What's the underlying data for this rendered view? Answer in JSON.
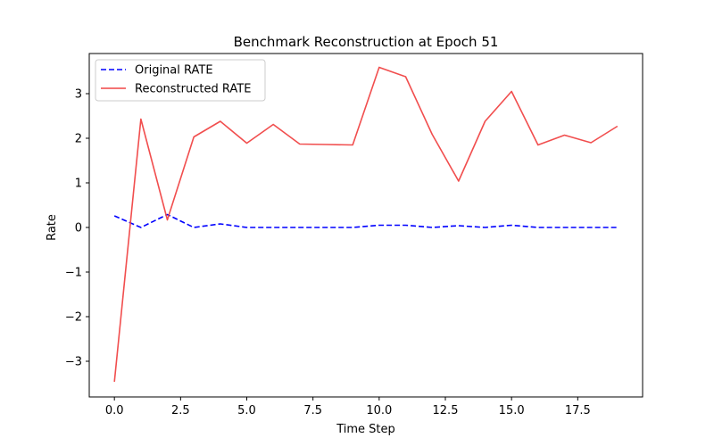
{
  "chart_data": {
    "type": "line",
    "title": "Benchmark Reconstruction at Epoch 51",
    "xlabel": "Time Step",
    "ylabel": "Rate",
    "xlim": [
      -0.95,
      19.95
    ],
    "ylim": [
      -3.8,
      3.9
    ],
    "xticks": [
      0.0,
      2.5,
      5.0,
      7.5,
      10.0,
      12.5,
      15.0,
      17.5
    ],
    "xtick_labels": [
      "0.0",
      "2.5",
      "5.0",
      "7.5",
      "10.0",
      "12.5",
      "15.0",
      "17.5"
    ],
    "yticks": [
      -3,
      -2,
      -1,
      0,
      1,
      2,
      3
    ],
    "ytick_labels": [
      "−3",
      "−2",
      "−1",
      "0",
      "1",
      "2",
      "3"
    ],
    "grid": false,
    "legend_position": "upper-left",
    "x": [
      0,
      1,
      2,
      3,
      4,
      5,
      6,
      7,
      8,
      9,
      10,
      11,
      12,
      13,
      14,
      15,
      16,
      17,
      18,
      19
    ],
    "series": [
      {
        "name": "Original RATE",
        "color": "#0000ff",
        "style": "dashed",
        "values": [
          0.26,
          0.0,
          0.29,
          0.0,
          0.08,
          0.0,
          0.0,
          0.0,
          0.0,
          0.0,
          0.05,
          0.05,
          0.0,
          0.04,
          0.0,
          0.05,
          0.0,
          0.0,
          0.0,
          0.0
        ]
      },
      {
        "name": "Reconstructed RATE",
        "color": "#f04545",
        "style": "solid",
        "values": [
          -3.46,
          2.43,
          0.17,
          2.03,
          2.38,
          1.89,
          2.31,
          1.87,
          1.86,
          1.85,
          3.59,
          3.38,
          2.09,
          1.04,
          2.38,
          3.05,
          1.85,
          2.07,
          1.9,
          2.27
        ]
      }
    ]
  }
}
